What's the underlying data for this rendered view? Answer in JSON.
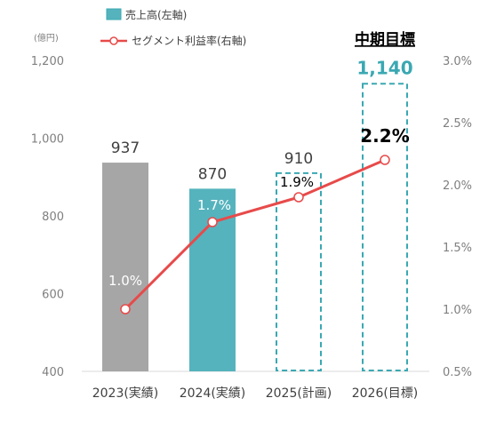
{
  "chart_data": {
    "type": "bar",
    "categories": [
      "2023(実績)",
      "2024(実績)",
      "2025(計画)",
      "2026(目標)"
    ],
    "series": [
      {
        "name": "売上高(左軸)",
        "axis": "left",
        "type": "bar",
        "values": [
          937,
          870,
          910,
          1140
        ],
        "value_labels": [
          "937",
          "870",
          "910",
          "1,140"
        ],
        "styles": [
          "solid",
          "solid",
          "dashed-outline",
          "dashed-outline"
        ],
        "colors": [
          "#a6a6a6",
          "#55b3bd",
          "#3aa8b2",
          "#3aa8b2"
        ]
      },
      {
        "name": "セグメント利益率(右軸)",
        "axis": "right",
        "type": "line",
        "values": [
          1.0,
          1.7,
          1.9,
          2.2
        ],
        "value_labels": [
          "1.0%",
          "1.7%",
          "1.9%",
          "2.2%"
        ],
        "color": "#e84a4a"
      }
    ],
    "left_axis": {
      "unit": "(億円)",
      "ylim": [
        400,
        1200
      ],
      "ticks": [
        "400",
        "600",
        "800",
        "1,000",
        "1,200"
      ]
    },
    "right_axis": {
      "ylim": [
        0.5,
        3.0
      ],
      "ticks": [
        "0.5%",
        "1.0%",
        "1.5%",
        "2.0%",
        "2.5%",
        "3.0%"
      ]
    },
    "annotation": "中期目標",
    "legend_placement": "top-left",
    "grid": false,
    "colors": {
      "gray_bar": "#a6a6a6",
      "teal": "#55b3bd",
      "teal_dark": "#3aa8b2",
      "line": "#e84a4a"
    }
  }
}
